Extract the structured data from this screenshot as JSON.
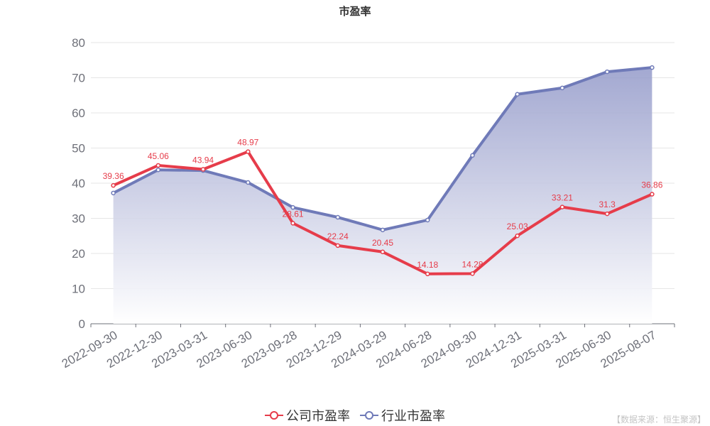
{
  "source": "【数据来源：恒生聚源】",
  "chart_data": {
    "type": "line",
    "title": "市盈率",
    "xlabel": "",
    "ylabel": "",
    "categories": [
      "2022-09-30",
      "2022-12-30",
      "2023-03-31",
      "2023-06-30",
      "2023-09-28",
      "2023-12-29",
      "2024-03-29",
      "2024-06-28",
      "2024-09-30",
      "2024-12-31",
      "2025-03-31",
      "2025-06-30",
      "2025-08-07"
    ],
    "ylim": [
      0,
      80
    ],
    "yticks": [
      0,
      10,
      20,
      30,
      40,
      50,
      60,
      70,
      80
    ],
    "grid": true,
    "legend_position": "bottom",
    "series": [
      {
        "name": "公司市盈率",
        "color": "#e63c4a",
        "data_labels": true,
        "area": false,
        "values": [
          39.36,
          45.06,
          43.94,
          48.97,
          28.61,
          22.24,
          20.45,
          14.18,
          14.28,
          25.03,
          33.21,
          31.3,
          36.86
        ]
      },
      {
        "name": "行业市盈率",
        "color": "#6f7ab8",
        "data_labels": false,
        "area": true,
        "values": [
          37.2,
          43.8,
          43.6,
          40.2,
          33.1,
          30.3,
          26.7,
          29.5,
          47.9,
          65.3,
          67.1,
          71.7,
          72.9
        ]
      }
    ]
  }
}
